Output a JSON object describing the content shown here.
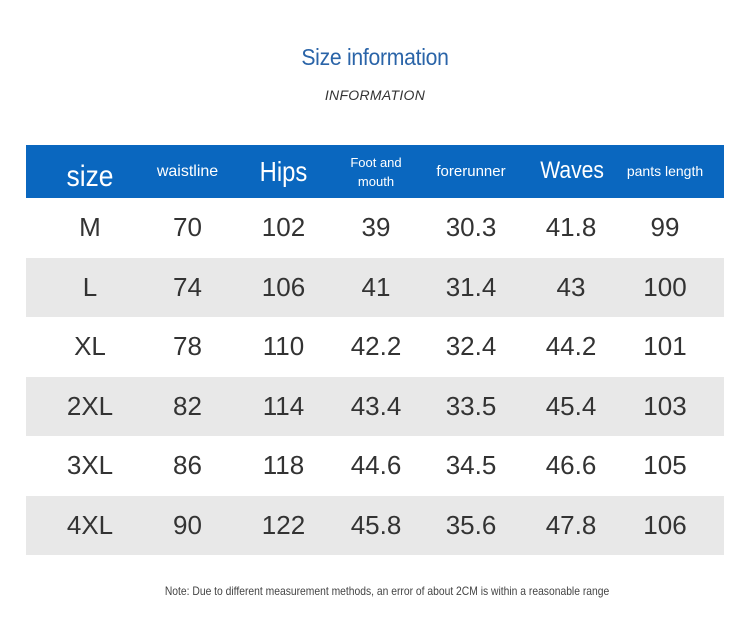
{
  "title": "Size information",
  "subtitle": "INFORMATION",
  "table": {
    "headers": [
      "size",
      "waistline",
      "Hips",
      "Foot and mouth",
      "forerunner",
      "Waves",
      "pants length"
    ],
    "rows": [
      [
        "M",
        "70",
        "102",
        "39",
        "30.3",
        "41.8",
        "99"
      ],
      [
        "L",
        "74",
        "106",
        "41",
        "31.4",
        "43",
        "100"
      ],
      [
        "XL",
        "78",
        "110",
        "42.2",
        "32.4",
        "44.2",
        "101"
      ],
      [
        "2XL",
        "82",
        "114",
        "43.4",
        "33.5",
        "45.4",
        "103"
      ],
      [
        "3XL",
        "86",
        "118",
        "44.6",
        "34.5",
        "46.6",
        "105"
      ],
      [
        "4XL",
        "90",
        "122",
        "45.8",
        "35.6",
        "47.8",
        "106"
      ]
    ]
  },
  "note": "Note: Due to different measurement methods, an error of about 2CM is within a reasonable range",
  "colors": {
    "header_bg": "#0a67bf",
    "title": "#2a64a8",
    "row_shade": "#e8e8e8"
  }
}
